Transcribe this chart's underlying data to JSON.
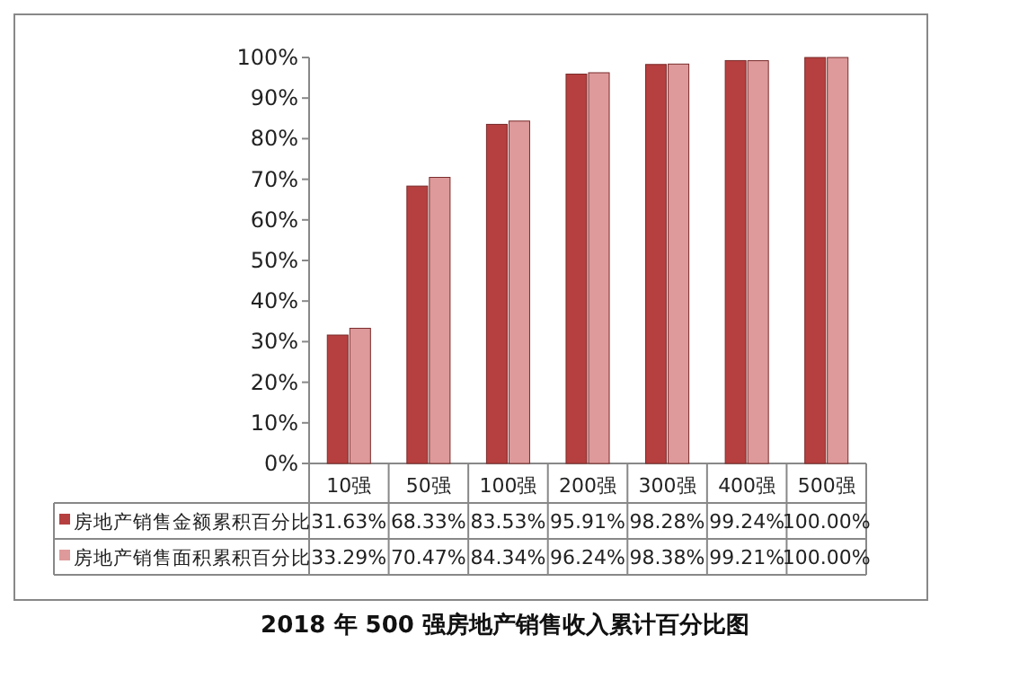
{
  "chart_data": {
    "type": "bar",
    "title": "2018 年 500 强房地产销售收入累计百分比图",
    "categories": [
      "10强",
      "50强",
      "100强",
      "200强",
      "300强",
      "400强",
      "500强"
    ],
    "series": [
      {
        "name": "房地产销售金额累积百分比",
        "color": "#b5403f",
        "values": [
          31.63,
          68.33,
          83.53,
          95.91,
          98.28,
          99.24,
          100.0
        ],
        "value_labels": [
          "31.63%",
          "68.33%",
          "83.53%",
          "95.91%",
          "98.28%",
          "99.24%",
          "100.00%"
        ]
      },
      {
        "name": "房地产销售面积累积百分比",
        "color": "#de9a9a",
        "values": [
          33.29,
          70.47,
          84.34,
          96.24,
          98.38,
          99.21,
          100.0
        ],
        "value_labels": [
          "33.29%",
          "70.47%",
          "84.34%",
          "96.24%",
          "98.38%",
          "99.21%",
          "100.00%"
        ]
      }
    ],
    "ylim": [
      0,
      100
    ],
    "yticks": [
      {
        "value": 0,
        "label": "0%"
      },
      {
        "value": 10,
        "label": "10%"
      },
      {
        "value": 20,
        "label": "20%"
      },
      {
        "value": 30,
        "label": "30%"
      },
      {
        "value": 40,
        "label": "40%"
      },
      {
        "value": 50,
        "label": "50%"
      },
      {
        "value": 60,
        "label": "60%"
      },
      {
        "value": 70,
        "label": "70%"
      },
      {
        "value": 80,
        "label": "80%"
      },
      {
        "value": 90,
        "label": "90%"
      },
      {
        "value": 100,
        "label": "100%"
      }
    ],
    "legend": "bottom",
    "grid": false
  }
}
